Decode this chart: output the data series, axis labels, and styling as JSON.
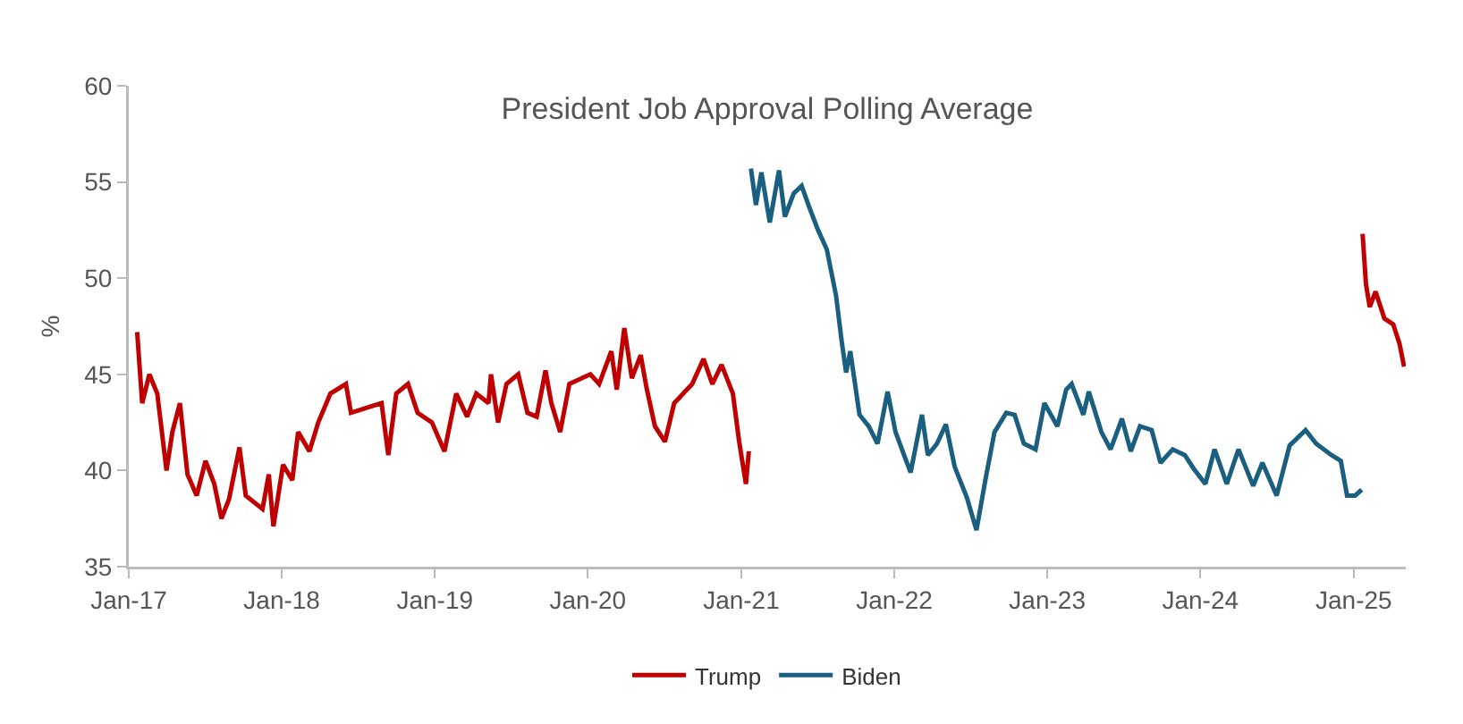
{
  "chart_data": {
    "type": "line",
    "title": "President Job Approval Polling Average",
    "ylabel": "%",
    "xlim": [
      "2017-01-01",
      "2025-05-05"
    ],
    "xticks": [
      {
        "value": "2017-01-01",
        "label": "Jan-17"
      },
      {
        "value": "2018-01-01",
        "label": "Jan-18"
      },
      {
        "value": "2019-01-01",
        "label": "Jan-19"
      },
      {
        "value": "2020-01-01",
        "label": "Jan-20"
      },
      {
        "value": "2021-01-01",
        "label": "Jan-21"
      },
      {
        "value": "2022-01-01",
        "label": "Jan-22"
      },
      {
        "value": "2023-01-01",
        "label": "Jan-23"
      },
      {
        "value": "2024-01-01",
        "label": "Jan-24"
      },
      {
        "value": "2025-01-01",
        "label": "Jan-25"
      }
    ],
    "ylim": [
      35,
      60
    ],
    "yticks": [
      35,
      40,
      45,
      50,
      55,
      60
    ],
    "grid": false,
    "legend": "bottom",
    "marker": "none",
    "line_style": "solid",
    "series": [
      {
        "name": "Trump",
        "color": "#c00000",
        "x": [
          "2017-01-21",
          "2017-02-02",
          "2017-02-19",
          "2017-03-10",
          "2017-04-01",
          "2017-04-15",
          "2017-05-03",
          "2017-05-21",
          "2017-06-12",
          "2017-07-03",
          "2017-07-24",
          "2017-08-10",
          "2017-08-28",
          "2017-09-22",
          "2017-10-07",
          "2017-11-16",
          "2017-12-01",
          "2017-12-12",
          "2018-01-04",
          "2018-01-26",
          "2018-02-09",
          "2018-03-08",
          "2018-03-29",
          "2018-04-27",
          "2018-06-03",
          "2018-06-15",
          "2018-07-28",
          "2018-08-27",
          "2018-09-12",
          "2018-10-01",
          "2018-10-29",
          "2018-11-21",
          "2018-12-25",
          "2019-01-24",
          "2019-02-21",
          "2019-03-19",
          "2019-04-10",
          "2019-05-09",
          "2019-05-15",
          "2019-06-01",
          "2019-06-21",
          "2019-07-19",
          "2019-08-10",
          "2019-09-01",
          "2019-09-22",
          "2019-10-06",
          "2019-10-27",
          "2019-11-18",
          "2020-01-07",
          "2020-01-28",
          "2020-02-26",
          "2020-03-10",
          "2020-03-28",
          "2020-04-15",
          "2020-05-06",
          "2020-05-20",
          "2020-06-09",
          "2020-07-03",
          "2020-07-25",
          "2020-09-06",
          "2020-10-03",
          "2020-10-24",
          "2020-11-15",
          "2020-12-12",
          "2020-12-27",
          "2021-01-12",
          "2021-01-19",
          "2023-01-01",
          "2025-01-22",
          "2025-01-30",
          "2025-02-08",
          "2025-02-22",
          "2025-03-15",
          "2025-04-05",
          "2025-04-20",
          "2025-05-01"
        ],
        "values": [
          47.2,
          43.5,
          45,
          44,
          40,
          42,
          43.5,
          39.8,
          38.7,
          40.5,
          39.3,
          37.5,
          38.5,
          41.2,
          38.7,
          38,
          39.8,
          37.1,
          40.3,
          39.5,
          42,
          41,
          42.5,
          44,
          44.5,
          43,
          43.3,
          43.5,
          40.8,
          44,
          44.5,
          43,
          42.5,
          41,
          44,
          42.8,
          44,
          43.5,
          45,
          42.5,
          44.5,
          45,
          43,
          42.8,
          45.2,
          43.5,
          42,
          44.5,
          45,
          44.5,
          46.2,
          44.2,
          47.4,
          44.8,
          46,
          44.3,
          42.3,
          41.5,
          43.5,
          44.5,
          45.8,
          44.5,
          45.5,
          44,
          41.5,
          39.3,
          41,
          null,
          52.3,
          49.7,
          48.5,
          49.3,
          47.9,
          47.6,
          46.6,
          45.4
        ]
      },
      {
        "name": "Biden",
        "color": "#1a5e80",
        "x": [
          "2021-01-24",
          "2021-02-05",
          "2021-02-18",
          "2021-03-10",
          "2021-04-01",
          "2021-04-15",
          "2021-05-06",
          "2021-05-25",
          "2021-06-12",
          "2021-07-03",
          "2021-07-24",
          "2021-08-15",
          "2021-08-28",
          "2021-09-08",
          "2021-09-18",
          "2021-10-10",
          "2021-11-01",
          "2021-11-22",
          "2021-12-16",
          "2022-01-04",
          "2022-01-26",
          "2022-02-09",
          "2022-03-08",
          "2022-03-22",
          "2022-04-13",
          "2022-05-04",
          "2022-05-25",
          "2022-06-23",
          "2022-07-16",
          "2022-08-07",
          "2022-08-28",
          "2022-09-25",
          "2022-10-15",
          "2022-11-06",
          "2022-12-04",
          "2022-12-25",
          "2023-01-25",
          "2023-02-15",
          "2023-02-28",
          "2023-03-28",
          "2023-04-10",
          "2023-05-10",
          "2023-06-01",
          "2023-06-28",
          "2023-07-19",
          "2023-08-10",
          "2023-09-07",
          "2023-09-28",
          "2023-10-27",
          "2023-11-25",
          "2023-12-16",
          "2024-01-13",
          "2024-02-04",
          "2024-03-04",
          "2024-04-01",
          "2024-05-06",
          "2024-05-28",
          "2024-07-01",
          "2024-08-01",
          "2024-09-08",
          "2024-10-03",
          "2024-11-09",
          "2024-12-01",
          "2024-12-16",
          "2025-01-04",
          "2025-01-20"
        ],
        "values": [
          55.7,
          53.8,
          55.5,
          52.9,
          55.6,
          53.2,
          54.4,
          54.8,
          53.7,
          52.5,
          51.5,
          49.1,
          46.8,
          45.1,
          46.2,
          42.9,
          42.3,
          41.4,
          44.1,
          42,
          40.7,
          39.9,
          42.9,
          40.8,
          41.4,
          42.4,
          40.2,
          38.6,
          36.9,
          39.6,
          42,
          43,
          42.9,
          41.4,
          41.1,
          43.5,
          42.3,
          44.2,
          44.5,
          42.9,
          44.1,
          42,
          41.1,
          42.7,
          41,
          42.3,
          42.1,
          40.4,
          41.1,
          40.8,
          40.1,
          39.3,
          41.1,
          39.3,
          41.1,
          39.2,
          40.4,
          38.7,
          41.3,
          42.1,
          41.4,
          40.8,
          40.5,
          38.7,
          38.7,
          39
        ]
      }
    ]
  }
}
